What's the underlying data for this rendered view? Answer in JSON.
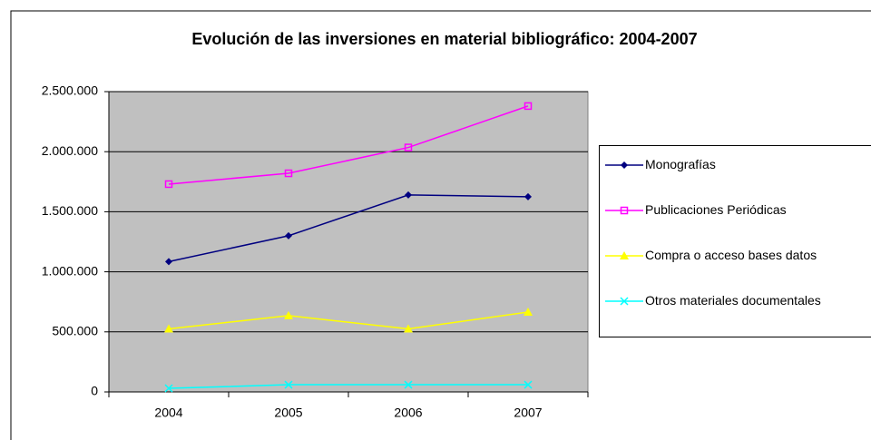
{
  "chart_data": {
    "type": "line",
    "title": "Evolución de las inversiones en material bibliográfico: 2004-2007",
    "categories": [
      "2004",
      "2005",
      "2006",
      "2007"
    ],
    "series": [
      {
        "name": "Monografías",
        "color": "#000080",
        "marker": "diamond",
        "values": [
          1085000,
          1300000,
          1640000,
          1625000
        ]
      },
      {
        "name": "Publicaciones Periódicas",
        "color": "#ff00ff",
        "marker": "square",
        "values": [
          1730000,
          1820000,
          2035000,
          2380000
        ]
      },
      {
        "name": "Compra o acceso bases datos",
        "color": "#ffff00",
        "marker": "triangle",
        "values": [
          525000,
          635000,
          525000,
          665000
        ]
      },
      {
        "name": "Otros materiales documentales",
        "color": "#00ffff",
        "marker": "x",
        "values": [
          30000,
          60000,
          60000,
          60000
        ]
      }
    ],
    "ylim": [
      0,
      2500000
    ],
    "yticks": [
      0,
      {
        "value": 500000,
        "label": "500.000"
      },
      {
        "value": 1000000,
        "label": "1.000.000"
      },
      {
        "value": 1500000,
        "label": "1.500.000"
      },
      {
        "value": 2000000,
        "label": "2.000.000"
      },
      {
        "value": 2500000,
        "label": "2.500.000"
      }
    ],
    "grid": true
  }
}
